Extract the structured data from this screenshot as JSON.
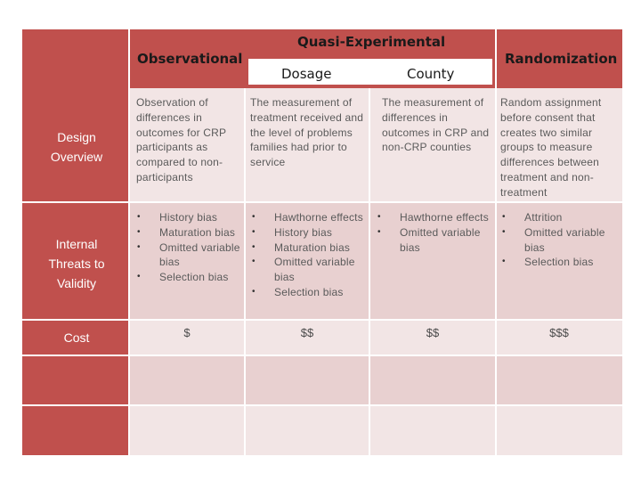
{
  "header": {
    "observational": "Observational",
    "quasi_experimental": "Quasi-Experimental",
    "dosage": "Dosage",
    "county": "County",
    "randomization": "Randomization"
  },
  "rows": {
    "design_overview": {
      "label": "Design Overview",
      "observational": "Observation of differences in outcomes for CRP participants as compared to non-participants",
      "dosage": "The measurement of treatment received and the level of problems families had prior to service",
      "county": "The measurement of differences in outcomes in CRP and non-CRP counties",
      "randomization": "Random assignment before consent that creates two similar groups to measure differences between treatment and non-treatment"
    },
    "internal_threats": {
      "label": "Internal Threats to Validity",
      "observational": [
        "History bias",
        "Maturation bias",
        "Omitted variable bias",
        "Selection bias"
      ],
      "dosage": [
        "Hawthorne effects",
        "History bias",
        "Maturation bias",
        "Omitted variable bias",
        "Selection bias"
      ],
      "county": [
        "Hawthorne effects",
        "Omitted variable bias"
      ],
      "randomization": [
        "Attrition",
        "Omitted variable bias",
        "Selection bias"
      ]
    },
    "cost": {
      "label": "Cost",
      "observational": "$",
      "dosage": "$$",
      "county": "$$",
      "randomization": "$$$"
    }
  },
  "bullet_glyph": "•",
  "colors": {
    "header_red": "#c0504d",
    "row_pink_dark": "#e8d0d0",
    "row_pink_light": "#f2e5e5"
  }
}
